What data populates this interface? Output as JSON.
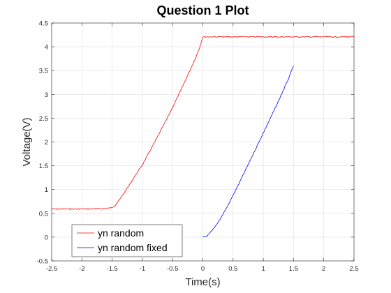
{
  "chart_data": {
    "type": "line",
    "title": "Question 1 Plot",
    "xlabel": "Time(s)",
    "ylabel": "Voltage(V)",
    "xlim": [
      -2.5,
      2.5
    ],
    "ylim": [
      -0.5,
      4.5
    ],
    "xticks": [
      "-2.5",
      "-2",
      "-1.5",
      "-1",
      "-0.5",
      "0",
      "0.5",
      "1",
      "1.5",
      "2",
      "2.5"
    ],
    "yticks": [
      "-0.5",
      "0",
      "0.5",
      "1",
      "1.5",
      "2",
      "2.5",
      "3",
      "3.5",
      "4",
      "4.5"
    ],
    "grid": true,
    "legend_position": "bottom-left",
    "series": [
      {
        "name": "yn random",
        "color": "#ff0000",
        "x": [
          -2.5,
          -2.0,
          -1.6,
          -1.5,
          -1.45,
          -1.4,
          -1.3,
          -1.2,
          -1.1,
          -1.0,
          -0.8,
          -0.6,
          -0.4,
          -0.2,
          -0.1,
          -0.05,
          0.0,
          0.5,
          1.0,
          1.5,
          2.0,
          2.5
        ],
        "y": [
          0.59,
          0.59,
          0.6,
          0.62,
          0.67,
          0.75,
          0.93,
          1.13,
          1.33,
          1.52,
          1.99,
          2.47,
          2.99,
          3.54,
          3.83,
          4.0,
          4.21,
          4.21,
          4.21,
          4.21,
          4.21,
          4.21
        ]
      },
      {
        "name": "yn random fixed",
        "color": "#0000ff",
        "x": [
          0.0,
          0.05,
          0.1,
          0.2,
          0.3,
          0.4,
          0.6,
          0.8,
          1.0,
          1.2,
          1.4,
          1.5
        ],
        "y": [
          0.0,
          0.01,
          0.06,
          0.21,
          0.41,
          0.63,
          1.13,
          1.66,
          2.19,
          2.72,
          3.28,
          3.6
        ]
      }
    ]
  }
}
